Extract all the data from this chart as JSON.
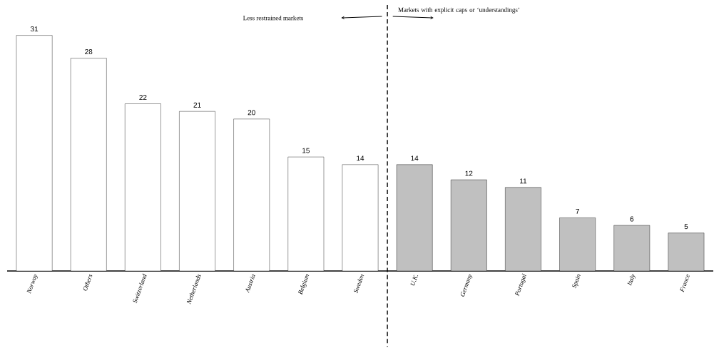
{
  "chart_data": {
    "type": "bar",
    "categories": [
      "Norway",
      "Others",
      "Switzerland",
      "Netherlands",
      "Austria",
      "Belgium",
      "Sweden",
      "U.K.",
      "Germany",
      "Portugal",
      "Spain",
      "Italy",
      "France"
    ],
    "values": [
      31,
      28,
      22,
      21,
      20,
      15,
      14,
      14,
      12,
      11,
      7,
      6,
      5
    ],
    "colors": [
      "#ffffff",
      "#ffffff",
      "#ffffff",
      "#ffffff",
      "#ffffff",
      "#ffffff",
      "#ffffff",
      "#c0c0c0",
      "#c0c0c0",
      "#c0c0c0",
      "#c0c0c0",
      "#c0c0c0",
      "#c0c0c0"
    ],
    "data_labels": true,
    "ylim": [
      0,
      35
    ],
    "tick_labels": "x",
    "annotations": [
      "Less restrained markets",
      "Markets with explicit caps or ‘understandings’"
    ]
  }
}
